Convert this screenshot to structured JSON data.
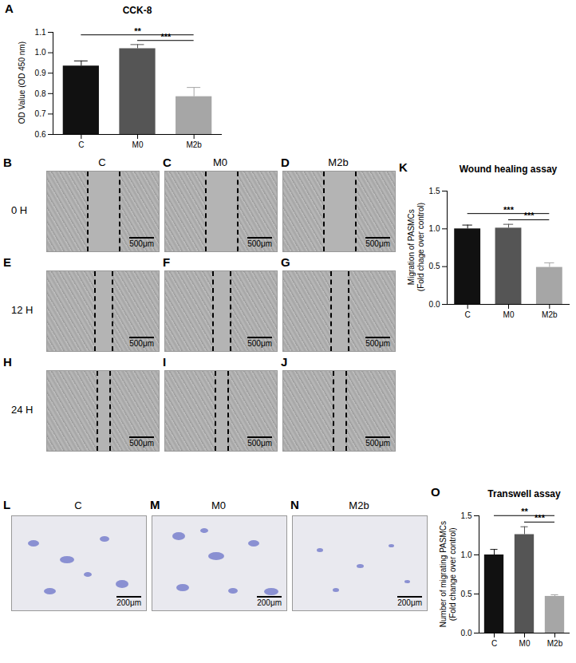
{
  "chart_data": [
    {
      "panel": "A",
      "type": "bar",
      "title": "CCK-8",
      "y_label": [
        "OD Value (OD 450 nm)"
      ],
      "categories": [
        "C",
        "M0",
        "M2b"
      ],
      "values": [
        0.935,
        1.02,
        0.785
      ],
      "errors": [
        0.025,
        0.02,
        0.045
      ],
      "colors": [
        "#111111",
        "#555555",
        "#a6a6a6"
      ],
      "ylim": [
        0.6,
        1.1
      ],
      "yticks": [
        0.6,
        0.7,
        0.8,
        0.9,
        {
          "value": 1,
          "label": "1.0"
        },
        1.1
      ],
      "significance": [
        {
          "from": "C",
          "to": "M2b",
          "label": "**"
        },
        {
          "from": "M0",
          "to": "M2b",
          "label": "***"
        }
      ]
    },
    {
      "panel": "K",
      "type": "bar",
      "title": "Wound healing assay",
      "y_label": [
        "Migration of PASMCs",
        "(Fold chage over control)"
      ],
      "categories": [
        "C",
        "M0",
        "M2b"
      ],
      "values": [
        1.0,
        1.01,
        0.49
      ],
      "errors": [
        0.05,
        0.05,
        0.06
      ],
      "colors": [
        "#111111",
        "#555555",
        "#a6a6a6"
      ],
      "ylim": [
        0,
        1.5
      ],
      "yticks": [
        {
          "value": 0,
          "label": "0.0"
        },
        0.5,
        {
          "value": 1,
          "label": "1.0"
        },
        1.5
      ],
      "significance": [
        {
          "from": "C",
          "to": "M2b",
          "label": "***"
        },
        {
          "from": "M0",
          "to": "M2b",
          "label": "***"
        }
      ]
    },
    {
      "panel": "O",
      "type": "bar",
      "title": "Transwell assay",
      "y_label": [
        "Number of migrating PASMCs",
        "(Fold change over control)"
      ],
      "categories": [
        "C",
        "M0",
        "M2b"
      ],
      "values": [
        1.0,
        1.26,
        0.47
      ],
      "errors": [
        0.07,
        0.1,
        0.02
      ],
      "colors": [
        "#111111",
        "#555555",
        "#a6a6a6"
      ],
      "ylim": [
        0,
        1.5
      ],
      "yticks": [
        {
          "value": 0,
          "label": "0.0"
        },
        0.5,
        {
          "value": 1,
          "label": "1.0"
        },
        1.5
      ],
      "significance": [
        {
          "from": "C",
          "to": "M2b",
          "label": "**"
        },
        {
          "from": "M0",
          "to": "M2b",
          "label": "***"
        }
      ]
    }
  ],
  "image_panels": {
    "wound_healing": {
      "columns": [
        "C",
        "M0",
        "M2b"
      ],
      "rows": [
        {
          "label": "0 H",
          "panels": [
            "B",
            "C",
            "D"
          ]
        },
        {
          "label": "12 H",
          "panels": [
            "E",
            "F",
            "G"
          ]
        },
        {
          "label": "24 H",
          "panels": [
            "H",
            "I",
            "J"
          ]
        }
      ],
      "scale_bar": "500μm"
    },
    "transwell": {
      "columns": [
        "C",
        "M0",
        "M2b"
      ],
      "panels": [
        "L",
        "M",
        "N"
      ],
      "scale_bar": "200μm"
    }
  }
}
